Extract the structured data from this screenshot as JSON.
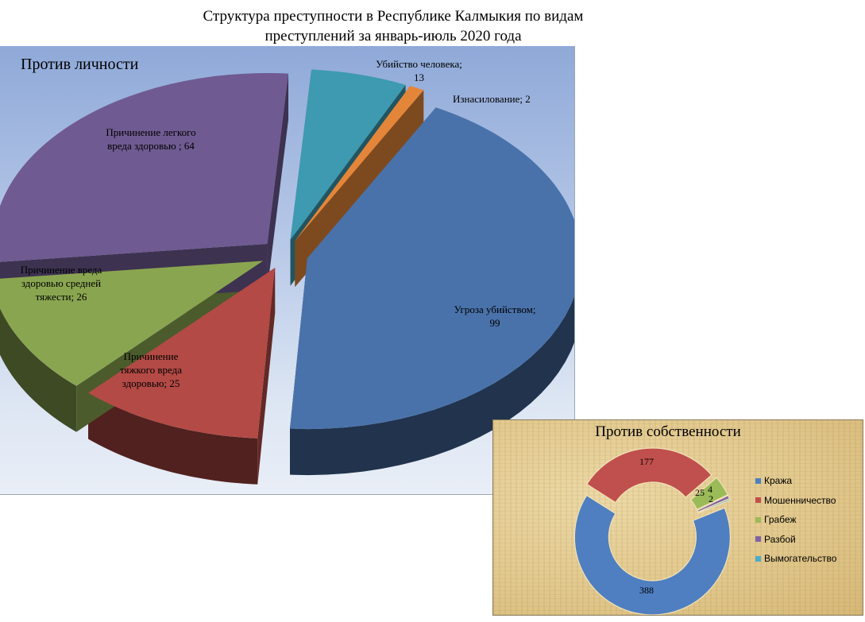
{
  "title": "Структура  преступности   в Республике  Калмыкия  по видам\nпреступлений  за январь-июль 2020 года",
  "chart_data": [
    {
      "type": "pie",
      "title": "Против личности",
      "slices": [
        {
          "label": "Угроза убийством;\n99",
          "value": 99,
          "color": "#4a72aa"
        },
        {
          "label": "Причинение\nтяжкого вреда\nздоровью; 25",
          "value": 25,
          "color": "#b34a45"
        },
        {
          "label": "Причинение  вреда\nздоровью средней\nтяжести; 26",
          "value": 26,
          "color": "#8aa550"
        },
        {
          "label": "Причинение  легкого\nвреда здоровью  ; 64",
          "value": 64,
          "color": "#6f5a91"
        },
        {
          "label": "Убийство человека;\n13",
          "value": 13,
          "color": "#3d9ab0"
        },
        {
          "label": "Изнасилование;  2",
          "value": 2,
          "color": "#e4863a"
        }
      ]
    },
    {
      "type": "donut",
      "title": "Против собственности",
      "legend_position": "right",
      "slices": [
        {
          "label": "Кража",
          "value": 388,
          "value_label": "388",
          "color": "#4f7fc0"
        },
        {
          "label": "Мошенничество",
          "value": 177,
          "value_label": "177",
          "color": "#c0504d"
        },
        {
          "label": "Грабеж",
          "value": 25,
          "value_label": "25",
          "color": "#9bbb59"
        },
        {
          "label": "Разбой",
          "value": 4,
          "value_label": "4",
          "color": "#8064a2"
        },
        {
          "label": "Вымогательство",
          "value": 2,
          "value_label": "2",
          "color": "#4bacc6"
        }
      ]
    }
  ]
}
